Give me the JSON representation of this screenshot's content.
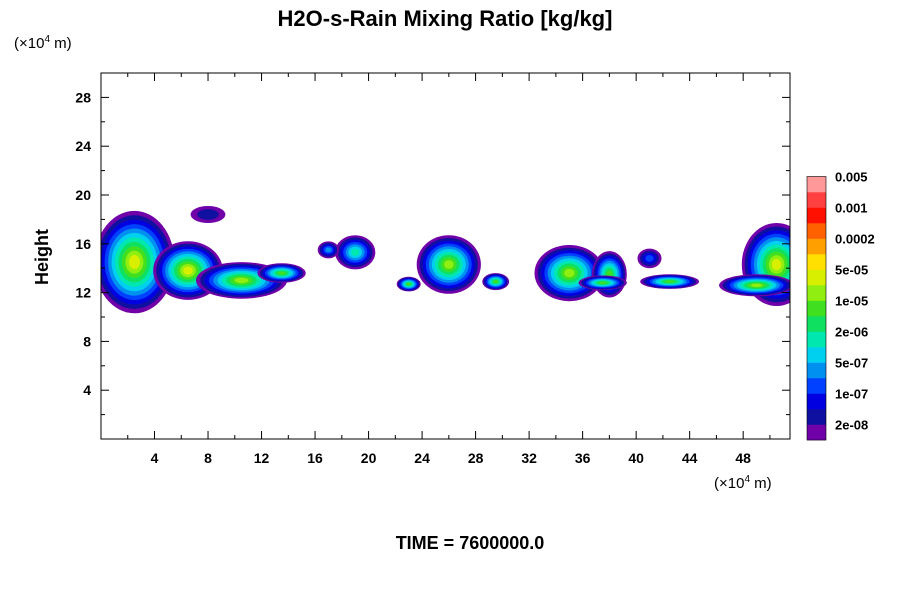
{
  "chart_data": {
    "type": "heatmap",
    "title": "H2O-s-Rain Mixing Ratio [kg/kg]",
    "ylabel": "Height",
    "x_unit_label": "(×10",
    "x_unit_exp": "4",
    "x_unit_suffix": " m)",
    "y_unit_label": "(×10",
    "y_unit_exp": "4",
    "y_unit_suffix": " m)",
    "xlim": [
      0,
      51.5
    ],
    "ylim": [
      0,
      30
    ],
    "x_ticks": [
      "4",
      "8",
      "12",
      "16",
      "20",
      "24",
      "28",
      "32",
      "36",
      "40",
      "44",
      "48"
    ],
    "y_ticks": [
      "4",
      "8",
      "12",
      "16",
      "20",
      "24",
      "28"
    ],
    "x_tick_values": [
      4,
      8,
      12,
      16,
      20,
      24,
      28,
      32,
      36,
      40,
      44,
      48
    ],
    "y_tick_values": [
      4,
      8,
      12,
      16,
      20,
      24,
      28
    ],
    "x_minor_step": 2,
    "y_minor_step": 2,
    "footer": "TIME = 7600000.0",
    "colorbar": {
      "colors": [
        "#7000a8",
        "#1010a0",
        "#0000e0",
        "#0040ff",
        "#0090f0",
        "#00d0f0",
        "#00e8b0",
        "#10e060",
        "#40e020",
        "#90ee10",
        "#d8f000",
        "#ffe000",
        "#ffa000",
        "#ff6000",
        "#ff1000",
        "#ff4040",
        "#ff9898"
      ],
      "labels": [
        "2e-08",
        "1e-07",
        "5e-07",
        "2e-06",
        "1e-05",
        "5e-05",
        "0.0002",
        "0.001",
        "0.005"
      ]
    },
    "cells": [
      {
        "x": 2.5,
        "y": 14.5,
        "rx": 3.0,
        "ry": 4.2,
        "peak": 10
      },
      {
        "x": 6.5,
        "y": 13.8,
        "rx": 2.6,
        "ry": 2.4,
        "peak": 10
      },
      {
        "x": 10.5,
        "y": 13.0,
        "rx": 3.4,
        "ry": 1.5,
        "peak": 9
      },
      {
        "x": 13.5,
        "y": 13.6,
        "rx": 1.8,
        "ry": 0.8,
        "peak": 8
      },
      {
        "x": 8.0,
        "y": 18.4,
        "rx": 1.3,
        "ry": 0.7,
        "peak": 1
      },
      {
        "x": 19.0,
        "y": 15.3,
        "rx": 1.5,
        "ry": 1.4,
        "peak": 6
      },
      {
        "x": 17.0,
        "y": 15.5,
        "rx": 0.8,
        "ry": 0.7,
        "peak": 4
      },
      {
        "x": 23.0,
        "y": 12.7,
        "rx": 0.9,
        "ry": 0.6,
        "peak": 8
      },
      {
        "x": 26.0,
        "y": 14.3,
        "rx": 2.4,
        "ry": 2.4,
        "peak": 9
      },
      {
        "x": 29.5,
        "y": 12.9,
        "rx": 1.0,
        "ry": 0.7,
        "peak": 8
      },
      {
        "x": 35.0,
        "y": 13.6,
        "rx": 2.6,
        "ry": 2.3,
        "peak": 9
      },
      {
        "x": 38.0,
        "y": 13.5,
        "rx": 1.3,
        "ry": 1.9,
        "peak": 8
      },
      {
        "x": 37.5,
        "y": 12.8,
        "rx": 1.8,
        "ry": 0.6,
        "peak": 8
      },
      {
        "x": 41.0,
        "y": 14.8,
        "rx": 0.9,
        "ry": 0.8,
        "peak": 3
      },
      {
        "x": 42.5,
        "y": 12.9,
        "rx": 2.2,
        "ry": 0.6,
        "peak": 8
      },
      {
        "x": 50.5,
        "y": 14.3,
        "rx": 2.6,
        "ry": 3.4,
        "peak": 10
      },
      {
        "x": 49.0,
        "y": 12.6,
        "rx": 2.8,
        "ry": 0.9,
        "peak": 9
      }
    ]
  }
}
